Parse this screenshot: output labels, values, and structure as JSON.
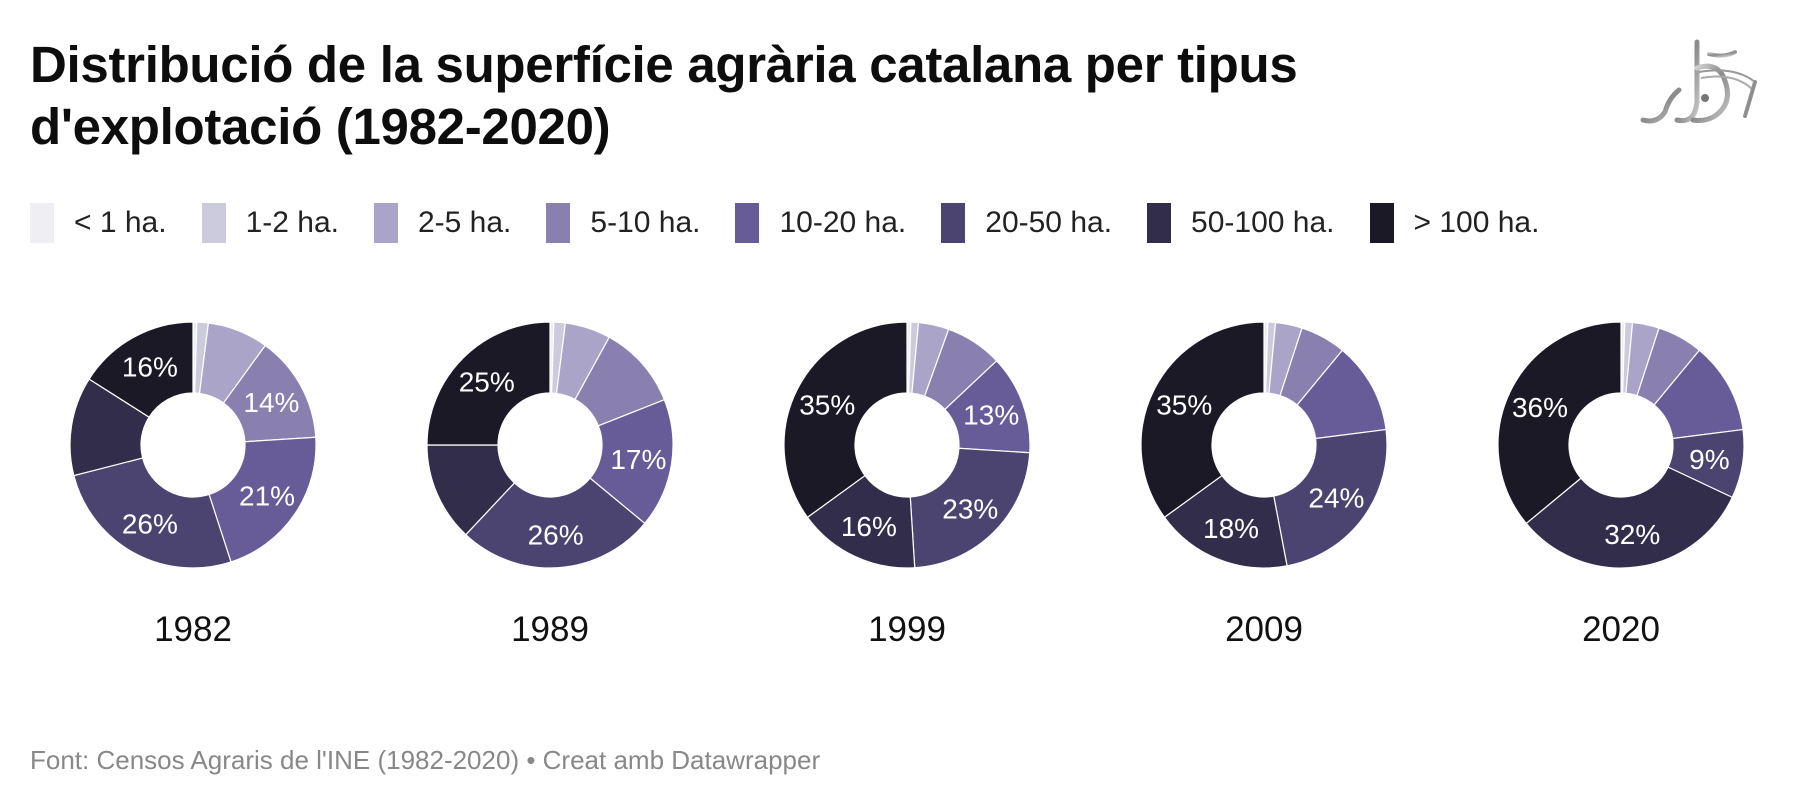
{
  "header": {
    "title": "Distribució de la superfície agrària catalana per tipus d'explotació (1982-2020)",
    "logo_icon": "publisher-logo-icon"
  },
  "legend": [
    {
      "label": "< 1 ha.",
      "color": "#eeeef3"
    },
    {
      "label": "1-2 ha.",
      "color": "#cccadd"
    },
    {
      "label": "2-5 ha.",
      "color": "#aaa4c8"
    },
    {
      "label": "5-10 ha.",
      "color": "#8980b0"
    },
    {
      "label": "10-20 ha.",
      "color": "#675b98"
    },
    {
      "label": "20-50 ha.",
      "color": "#4c4470"
    },
    {
      "label": "50-100 ha.",
      "color": "#332d4c"
    },
    {
      "label": "> 100 ha.",
      "color": "#1b1926"
    }
  ],
  "footer": {
    "text": "Font: Censos Agraris de l'INE (1982-2020) • Creat amb Datawrapper"
  },
  "chart_data": {
    "type": "pie",
    "variant": "donut",
    "title": "Distribució de la superfície agrària catalana per tipus d'explotació (1982-2020)",
    "categories": [
      "< 1 ha.",
      "1-2 ha.",
      "2-5 ha.",
      "5-10 ha.",
      "10-20 ha.",
      "20-50 ha.",
      "50-100 ha.",
      "> 100 ha."
    ],
    "unit": "%",
    "legend_position": "top",
    "series": [
      {
        "name": "1982",
        "values": [
          0.5,
          1.5,
          8,
          14,
          21,
          26,
          13,
          16
        ],
        "labels": [
          null,
          null,
          null,
          "14%",
          "21%",
          "26%",
          null,
          "16%"
        ]
      },
      {
        "name": "1989",
        "values": [
          0.5,
          1.5,
          6,
          11,
          17,
          26,
          13,
          25
        ],
        "labels": [
          null,
          null,
          null,
          null,
          "17%",
          "26%",
          null,
          "25%"
        ]
      },
      {
        "name": "1999",
        "values": [
          0.5,
          1,
          4,
          7.5,
          13,
          23,
          16,
          35
        ],
        "labels": [
          null,
          null,
          null,
          null,
          "13%",
          "23%",
          "16%",
          "35%"
        ]
      },
      {
        "name": "2009",
        "values": [
          0.5,
          1,
          3.5,
          6,
          12,
          24,
          18,
          35
        ],
        "labels": [
          null,
          null,
          null,
          null,
          null,
          "24%",
          "18%",
          "35%"
        ]
      },
      {
        "name": "2020",
        "values": [
          0.5,
          1,
          3.5,
          6,
          12,
          9,
          32,
          36
        ],
        "labels": [
          null,
          null,
          null,
          null,
          null,
          "9%",
          "32%",
          "36%"
        ]
      }
    ]
  }
}
